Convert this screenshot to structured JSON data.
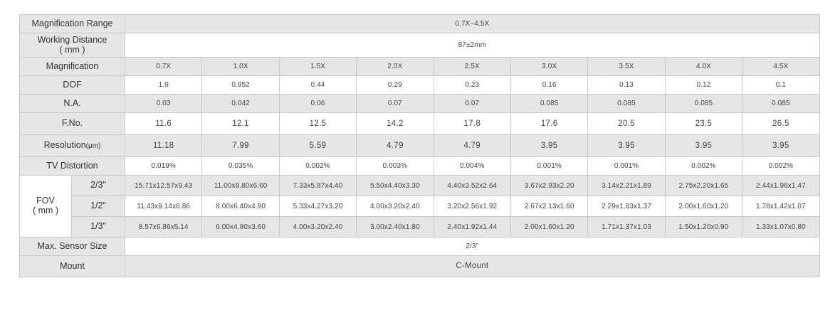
{
  "table": {
    "magnification_range": {
      "label": "Magnification Range",
      "value": "0.7X~4.5X"
    },
    "working_distance": {
      "label_line1": "Working Distance",
      "label_line2": "( mm )",
      "value": "87±2mm"
    },
    "magnification": {
      "label": "Magnification",
      "values": [
        "0.7X",
        "1.0X",
        "1.5X",
        "2.0X",
        "2.5X",
        "3.0X",
        "3.5X",
        "4.0X",
        "4.5X"
      ]
    },
    "dof": {
      "label": "DOF",
      "values": [
        "1.9",
        "0.952",
        "0.44",
        "0.29",
        "0.23",
        "0.16",
        "0.13",
        "0.12",
        "0.1"
      ]
    },
    "na": {
      "label": "N.A.",
      "values": [
        "0.03",
        "0.042",
        "0.06",
        "0.07",
        "0.07",
        "0.085",
        "0.085",
        "0.085",
        "0.085"
      ]
    },
    "fno": {
      "label": "F.No.",
      "values": [
        "11.6",
        "12.1",
        "12.5",
        "14.2",
        "17.8",
        "17.6",
        "20.5",
        "23.5",
        "26.5"
      ]
    },
    "resolution": {
      "label": "Resolution",
      "unit": "(μm)",
      "values": [
        "11.18",
        "7.99",
        "5.59",
        "4.79",
        "4.79",
        "3.95",
        "3.95",
        "3.95",
        "3.95"
      ]
    },
    "tv_distortion": {
      "label": "TV Distortion",
      "values": [
        "0.019%",
        "0.035%",
        "0.002%",
        "0.003%",
        "0.004%",
        "0.001%",
        "0.001%",
        "0.002%",
        "0.002%"
      ]
    },
    "fov": {
      "label_line1": "FOV",
      "label_line2": "( mm )",
      "rows": [
        {
          "sensor": "2/3\"",
          "values": [
            "15.71x12.57x9.43",
            "11.00x8.80x6.60",
            "7.33x5.87x4.40",
            "5.50x4.40x3.30",
            "4.40x3.52x2.64",
            "3.67x2.93x2.20",
            "3.14x2.21x1.89",
            "2.75x2.20x1.65",
            "2.44x1.96x1.47"
          ]
        },
        {
          "sensor": "1/2\"",
          "values": [
            "11.43x9.14x6.86",
            "8.00x6.40x4.80",
            "5.33x4.27x3.20",
            "4.00x3.20x2.40",
            "3.20x2.56x1.92",
            "2.67x2.13x1.60",
            "2.29x1.83x1.37",
            "2.00x1.60x1.20",
            "1.78x1.42x1.07"
          ]
        },
        {
          "sensor": "1/3\"",
          "values": [
            "8.57x6.86x5.14",
            "6.00x4.80x3.60",
            "4.00x3.20x2.40",
            "3.00x2.40x1.80",
            "2.40x1.92x1.44",
            "2.00x1.60x1.20",
            "1.71x1.37x1.03",
            "1.50x1.20x0.90",
            "1.33x1.07x0.80"
          ]
        }
      ]
    },
    "max_sensor_size": {
      "label": "Max. Sensor Size",
      "value": "2/3\""
    },
    "mount": {
      "label": "Mount",
      "value": "C-Mount"
    }
  }
}
